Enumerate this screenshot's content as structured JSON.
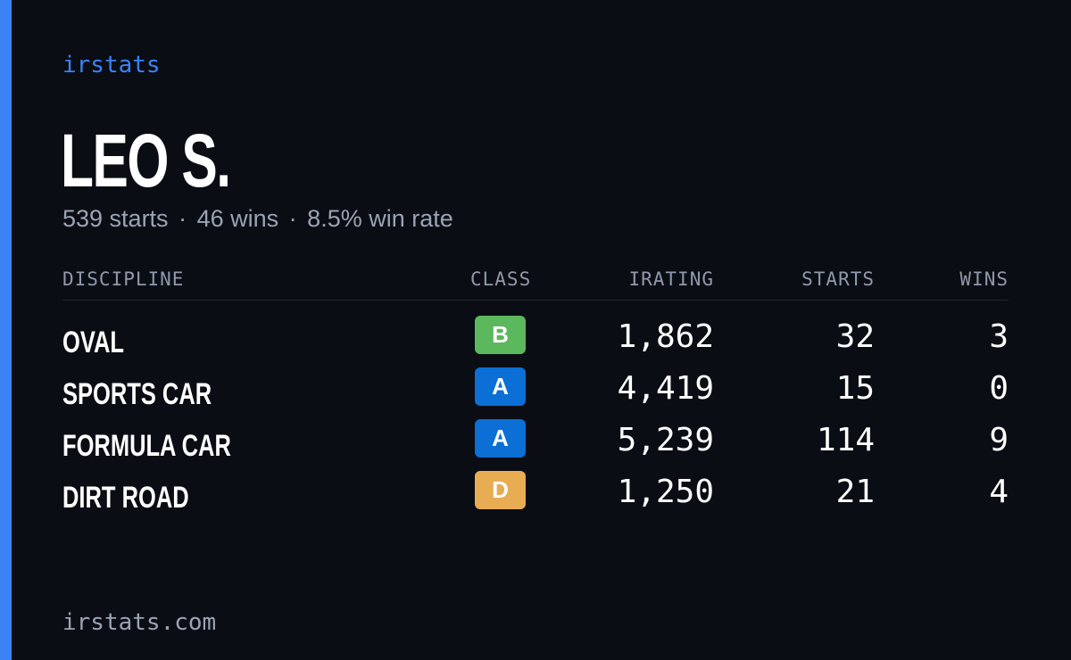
{
  "brand": "irstats",
  "driver": {
    "name": "LEO S.",
    "starts_text": "539 starts",
    "wins_text": "46 wins",
    "winrate_text": "8.5% win rate",
    "separator": "·"
  },
  "table": {
    "headers": {
      "discipline": "DISCIPLINE",
      "class": "CLASS",
      "irating": "IRATING",
      "starts": "STARTS",
      "wins": "WINS"
    },
    "rows": [
      {
        "discipline": "OVAL",
        "class": "B",
        "class_color": "#5cb85c",
        "irating": "1,862",
        "starts": "32",
        "wins": "3"
      },
      {
        "discipline": "SPORTS CAR",
        "class": "A",
        "class_color": "#0b6fd6",
        "irating": "4,419",
        "starts": "15",
        "wins": "0"
      },
      {
        "discipline": "FORMULA CAR",
        "class": "A",
        "class_color": "#0b6fd6",
        "irating": "5,239",
        "starts": "114",
        "wins": "9"
      },
      {
        "discipline": "DIRT ROAD",
        "class": "D",
        "class_color": "#e8ac52",
        "irating": "1,250",
        "starts": "21",
        "wins": "4"
      }
    ]
  },
  "footer": "irstats.com",
  "colors": {
    "accent": "#3b82f6",
    "background": "#0a0d14",
    "muted_text": "#9aa4b4"
  }
}
